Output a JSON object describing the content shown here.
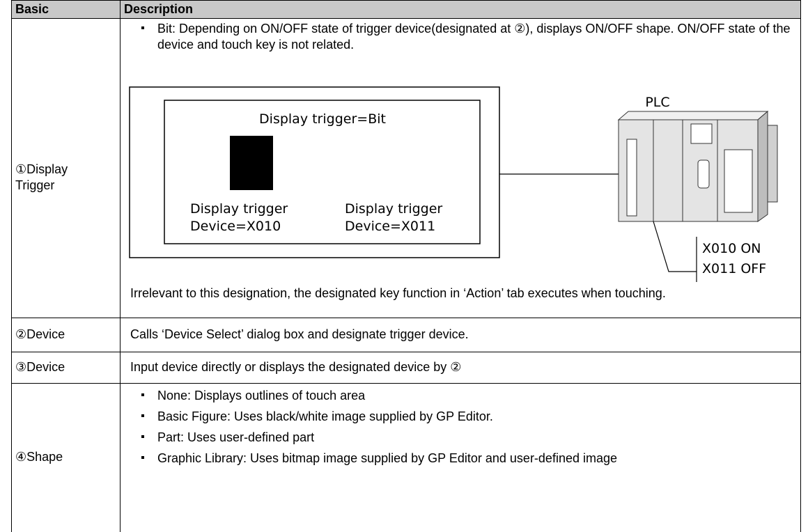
{
  "table": {
    "header": [
      "Basic",
      "Description"
    ],
    "rows": [
      {
        "basic": "①Display Trigger",
        "bullets": [
          "Bit: Depending on ON/OFF state of trigger device(designated at ②), displays ON/OFF shape. ON/OFF state of the device and touch key is not related."
        ],
        "figure": {
          "title": "Display trigger=Bit",
          "left_label": [
            "Display trigger",
            "Device=X010"
          ],
          "right_label": [
            "Display trigger",
            "Device=X011"
          ],
          "plc": "PLC",
          "states": [
            "X010 ON",
            "X011 OFF"
          ]
        },
        "note": "Irrelevant to this designation, the designated key function in ‘Action’ tab executes when touching."
      },
      {
        "basic": "②Device",
        "text": "Calls ‘Device Select’ dialog box and designate trigger device."
      },
      {
        "basic": "③Device",
        "text": "Input device directly or displays the designated device by ②"
      },
      {
        "basic": "④Shape",
        "bullets": [
          "None: Displays outlines of touch area",
          "Basic Figure: Uses black/white image supplied by GP Editor.",
          "Part: Uses user-defined part",
          "Graphic Library: Uses bitmap image supplied by GP Editor and user-defined image"
        ]
      }
    ]
  }
}
